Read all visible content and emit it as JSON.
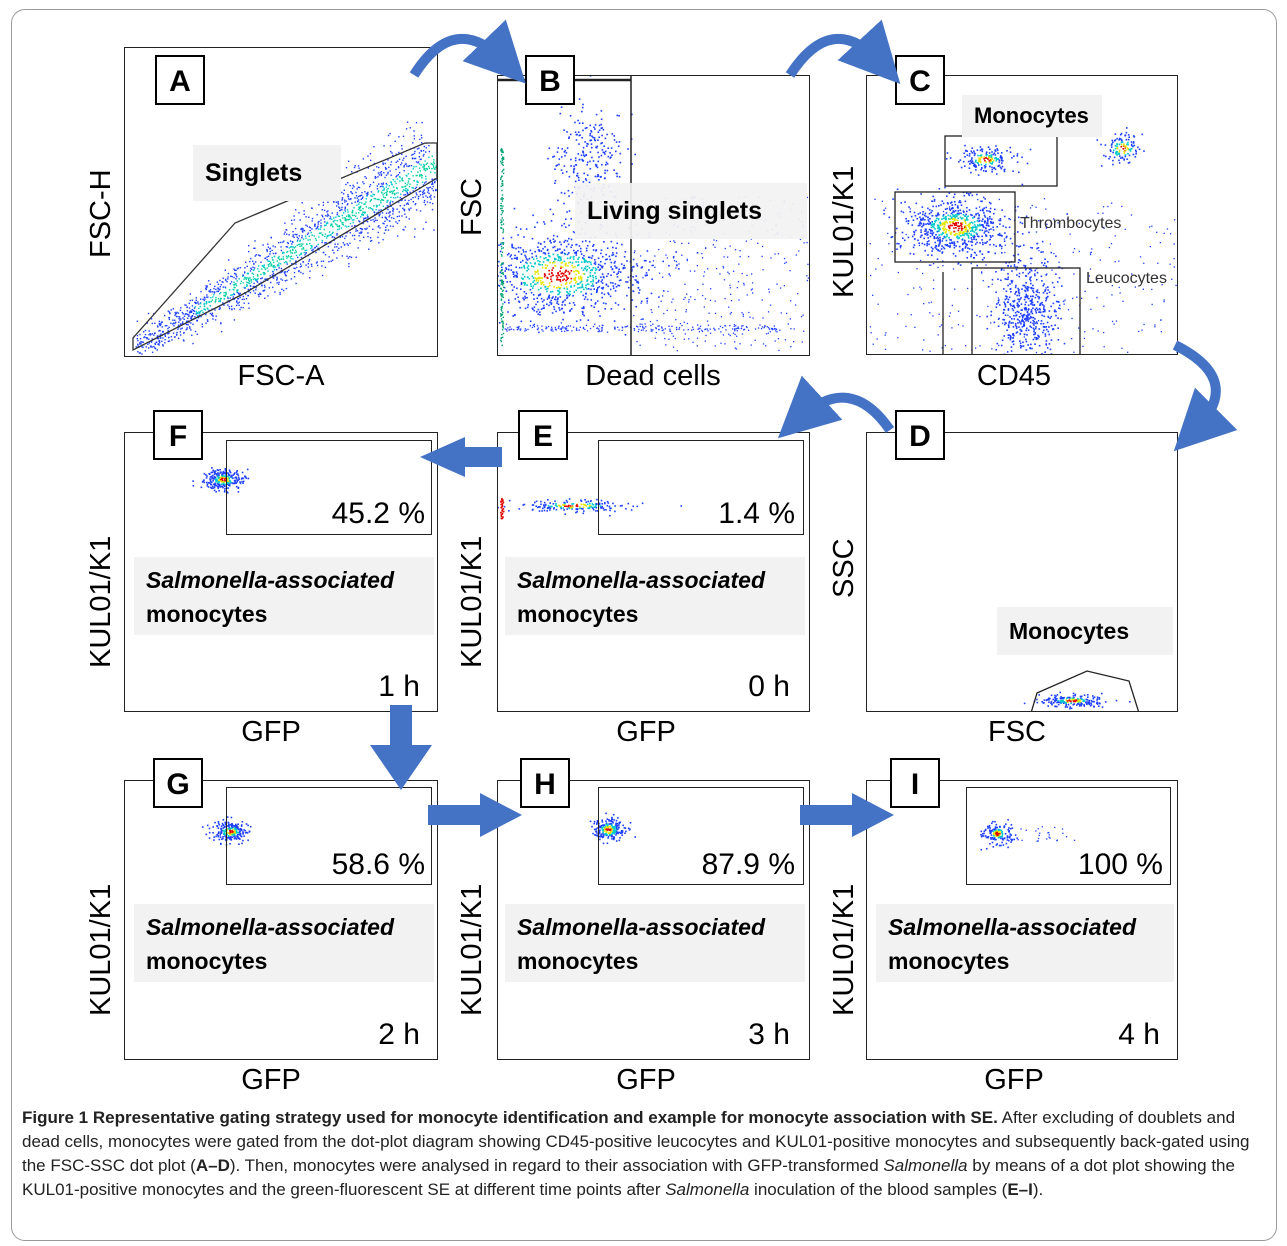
{
  "panels": {
    "A": {
      "label": "A",
      "xlabel": "FSC-A",
      "ylabel": "FSC-H",
      "gate_label": "Singlets"
    },
    "B": {
      "label": "B",
      "xlabel": "Dead cells",
      "ylabel": "FSC",
      "gate_label": "Living singlets"
    },
    "C": {
      "label": "C",
      "xlabel": "CD45",
      "ylabel": "KUL01/K1",
      "gate_label": "Monocytes",
      "thrombo_label": "Thrombocytes",
      "leuco_label": "Leucocytes"
    },
    "D": {
      "label": "D",
      "xlabel": "FSC",
      "ylabel": "SSC",
      "gate_label": "Monocytes"
    },
    "E": {
      "label": "E",
      "xlabel": "GFP",
      "ylabel": "KUL01/K1",
      "percent": "1.4 %",
      "time": "0 h"
    },
    "F": {
      "label": "F",
      "xlabel": "GFP",
      "ylabel": "KUL01/K1",
      "percent": "45.2 %",
      "time": "1 h"
    },
    "G": {
      "label": "G",
      "xlabel": "GFP",
      "ylabel": "KUL01/K1",
      "percent": "58.6 %",
      "time": "2 h"
    },
    "H": {
      "label": "H",
      "xlabel": "GFP",
      "ylabel": "KUL01/K1",
      "percent": "87.9 %",
      "time": "3 h"
    },
    "I": {
      "label": "I",
      "xlabel": "GFP",
      "ylabel": "KUL01/K1",
      "percent": "100 %",
      "time": "4 h"
    }
  },
  "assoc_label": {
    "italic": "Salmonella-associated",
    "plain": "monocytes"
  },
  "caption": {
    "title": "Figure 1  Representative gating strategy used for monocyte identification and example for monocyte association with SE.",
    "p1": " After excluding of doublets and dead cells, monocytes were gated from the dot-plot diagram showing CD45-positive leucocytes and KUL01-positive monocytes and subsequently back-gated using the FSC-SSC dot plot (",
    "r1": "A–D",
    "p2": "). Then, monocytes were analysed in regard to their association with GFP-transformed ",
    "salmonella1": "Salmonella",
    "p3": " by means of a dot plot showing the KUL01-positive monocytes and the green-fluorescent SE at different time points after ",
    "salmonella2": "Salmonella",
    "p4": " inoculation of the blood samples (",
    "r2": "E–I",
    "p5": ")."
  },
  "colors": {
    "arrow": "#4472c4",
    "dots": "#1f3fff",
    "density_mid": "#00c8c8",
    "density_high": "#e00000"
  }
}
